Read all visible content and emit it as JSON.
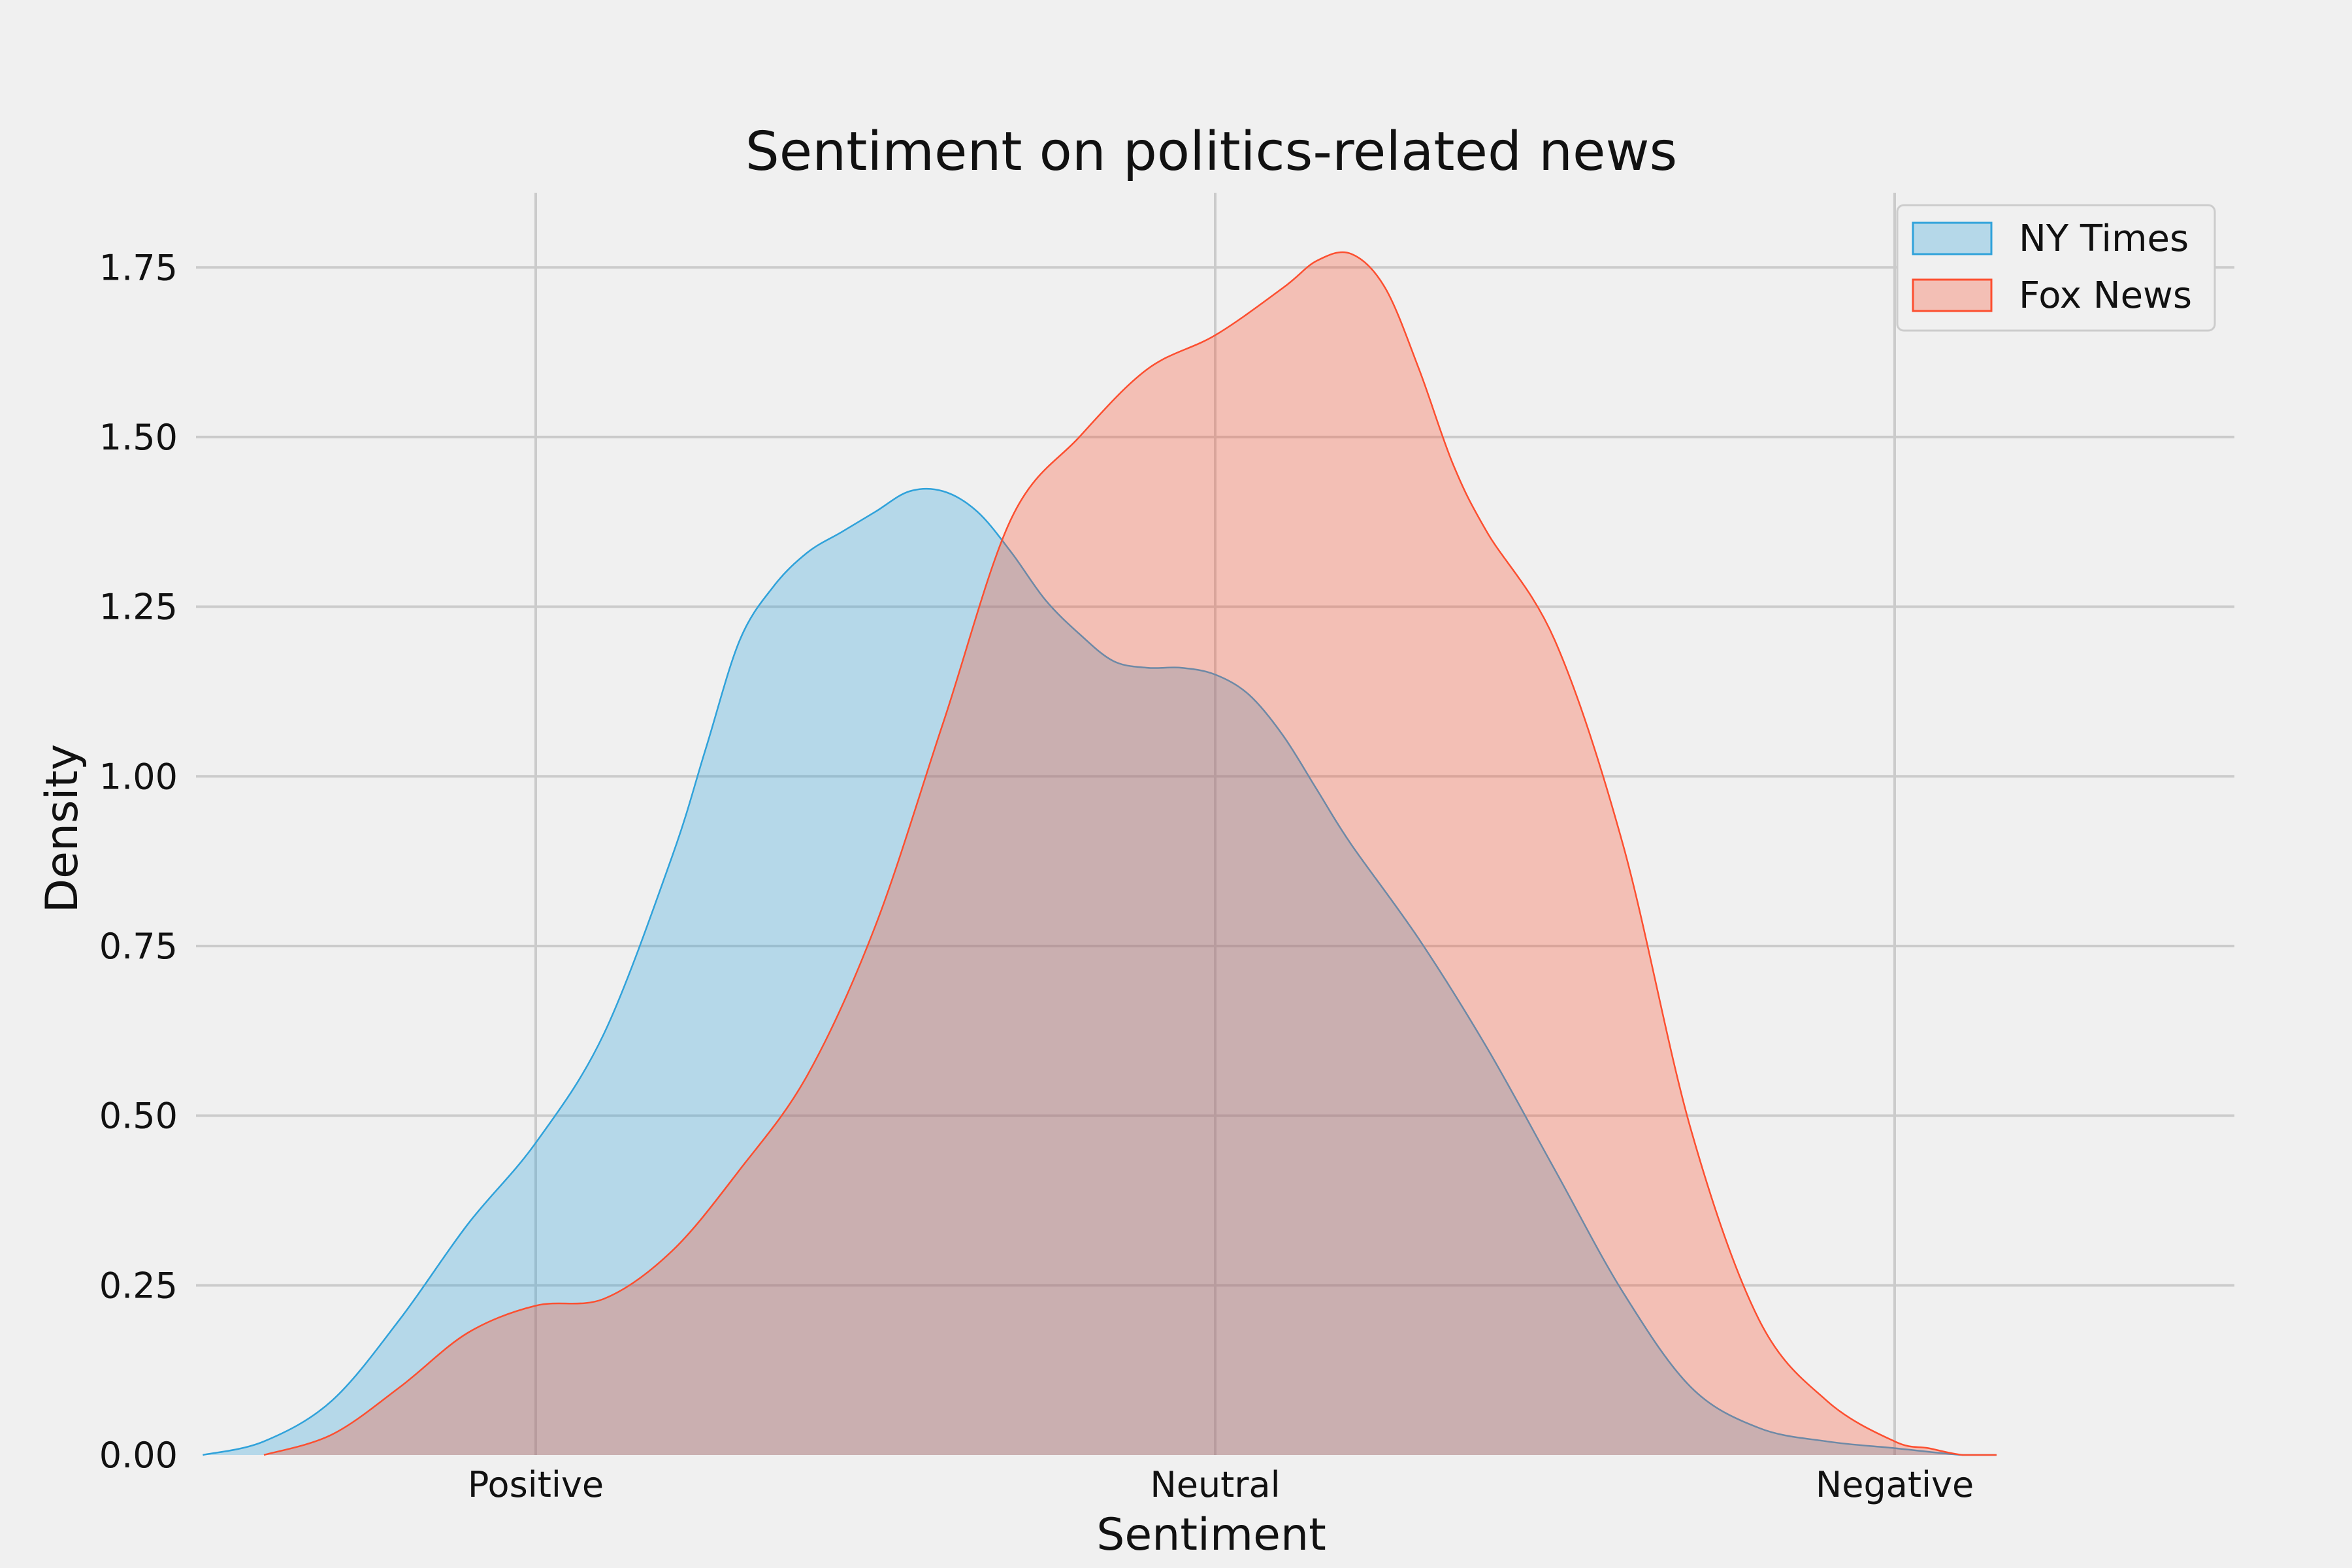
{
  "chart_data": {
    "type": "area",
    "title": "Sentiment on politics-related news",
    "xlabel": "Sentiment",
    "ylabel": "Density",
    "xlim": [
      -1.5,
      1.5
    ],
    "ylim": [
      0,
      1.86
    ],
    "x_ticks": [
      {
        "value": -1,
        "label": "Positive"
      },
      {
        "value": 0,
        "label": "Neutral"
      },
      {
        "value": 1,
        "label": "Negative"
      }
    ],
    "y_ticks": [
      {
        "value": 0,
        "label": "0.00"
      },
      {
        "value": 0.25,
        "label": "0.25"
      },
      {
        "value": 0.5,
        "label": "0.50"
      },
      {
        "value": 0.75,
        "label": "0.75"
      },
      {
        "value": 1.0,
        "label": "1.00"
      },
      {
        "value": 1.25,
        "label": "1.25"
      },
      {
        "value": 1.5,
        "label": "1.50"
      },
      {
        "value": 1.75,
        "label": "1.75"
      }
    ],
    "grid": true,
    "legend_position": "top-right",
    "series": [
      {
        "name": "NY Times",
        "color": "#30a2da",
        "x": [
          -1.49,
          -1.4,
          -1.3,
          -1.2,
          -1.1,
          -1.0,
          -0.9,
          -0.8,
          -0.75,
          -0.7,
          -0.65,
          -0.6,
          -0.55,
          -0.5,
          -0.45,
          -0.4,
          -0.35,
          -0.3,
          -0.25,
          -0.2,
          -0.15,
          -0.1,
          -0.05,
          0.0,
          0.05,
          0.1,
          0.15,
          0.2,
          0.3,
          0.4,
          0.5,
          0.6,
          0.7,
          0.8,
          0.9,
          1.0,
          1.1,
          1.15
        ],
        "y": [
          0.0,
          0.02,
          0.08,
          0.2,
          0.34,
          0.46,
          0.62,
          0.88,
          1.04,
          1.2,
          1.28,
          1.33,
          1.36,
          1.39,
          1.42,
          1.42,
          1.39,
          1.33,
          1.26,
          1.21,
          1.17,
          1.16,
          1.16,
          1.15,
          1.12,
          1.06,
          0.98,
          0.9,
          0.76,
          0.6,
          0.42,
          0.24,
          0.1,
          0.04,
          0.02,
          0.01,
          0.0,
          0.0
        ]
      },
      {
        "name": "Fox News",
        "color": "#fc4f30",
        "x": [
          -1.4,
          -1.3,
          -1.2,
          -1.1,
          -1.0,
          -0.9,
          -0.8,
          -0.7,
          -0.6,
          -0.5,
          -0.4,
          -0.3,
          -0.2,
          -0.1,
          0.0,
          0.1,
          0.15,
          0.2,
          0.25,
          0.3,
          0.35,
          0.4,
          0.5,
          0.6,
          0.7,
          0.8,
          0.9,
          1.0,
          1.05,
          1.1,
          1.15
        ],
        "y": [
          0.0,
          0.03,
          0.1,
          0.18,
          0.22,
          0.23,
          0.3,
          0.42,
          0.56,
          0.78,
          1.08,
          1.38,
          1.5,
          1.6,
          1.65,
          1.72,
          1.76,
          1.77,
          1.72,
          1.6,
          1.46,
          1.36,
          1.2,
          0.9,
          0.48,
          0.2,
          0.08,
          0.02,
          0.01,
          0.0,
          0.0
        ]
      }
    ]
  }
}
